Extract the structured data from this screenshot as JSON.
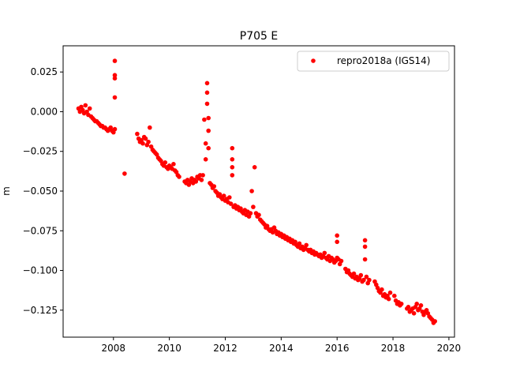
{
  "chart_data": {
    "type": "scatter",
    "title": "P705 E",
    "xlabel": "",
    "ylabel": "m",
    "xlim": [
      2006.2,
      2020.2
    ],
    "ylim": [
      -0.142,
      0.0415
    ],
    "xticks": [
      2008,
      2010,
      2012,
      2014,
      2016,
      2018,
      2020
    ],
    "xtick_labels": [
      "2008",
      "2010",
      "2012",
      "2014",
      "2016",
      "2018",
      "2020"
    ],
    "yticks": [
      0.025,
      0.0,
      -0.025,
      -0.05,
      -0.075,
      -0.1,
      -0.125
    ],
    "ytick_labels": [
      "0.025",
      "0.000",
      "−0.025",
      "−0.050",
      "−0.075",
      "−0.100",
      "−0.125"
    ],
    "grid": false,
    "legend_position": "top-right",
    "series": [
      {
        "name": "repro2018a (IGS14)",
        "color": "#ff0000",
        "marker": "circle",
        "points": [
          [
            2006.75,
            0.002
          ],
          [
            2006.8,
            0.0
          ],
          [
            2006.85,
            0.003
          ],
          [
            2006.9,
            0.001
          ],
          [
            2006.95,
            -0.001
          ],
          [
            2007.0,
            0.004
          ],
          [
            2007.05,
            0.0
          ],
          [
            2007.1,
            -0.002
          ],
          [
            2007.15,
            0.002
          ],
          [
            2007.2,
            -0.003
          ],
          [
            2007.25,
            -0.004
          ],
          [
            2007.3,
            -0.005
          ],
          [
            2007.35,
            -0.006
          ],
          [
            2007.4,
            -0.006
          ],
          [
            2007.45,
            -0.007
          ],
          [
            2007.5,
            -0.008
          ],
          [
            2007.55,
            -0.009
          ],
          [
            2007.6,
            -0.009
          ],
          [
            2007.65,
            -0.01
          ],
          [
            2007.7,
            -0.01
          ],
          [
            2007.75,
            -0.011
          ],
          [
            2007.8,
            -0.012
          ],
          [
            2007.85,
            -0.011
          ],
          [
            2007.9,
            -0.01
          ],
          [
            2007.95,
            -0.012
          ],
          [
            2008.0,
            -0.013
          ],
          [
            2008.05,
            -0.011
          ],
          [
            2008.05,
            0.032
          ],
          [
            2008.05,
            0.023
          ],
          [
            2008.05,
            0.021
          ],
          [
            2008.05,
            0.009
          ],
          [
            2008.4,
            -0.039
          ],
          [
            2008.85,
            -0.014
          ],
          [
            2008.9,
            -0.017
          ],
          [
            2008.95,
            -0.019
          ],
          [
            2009.0,
            -0.018
          ],
          [
            2009.05,
            -0.02
          ],
          [
            2009.1,
            -0.016
          ],
          [
            2009.15,
            -0.017
          ],
          [
            2009.2,
            -0.021
          ],
          [
            2009.25,
            -0.019
          ],
          [
            2009.3,
            -0.01
          ],
          [
            2009.35,
            -0.022
          ],
          [
            2009.4,
            -0.024
          ],
          [
            2009.45,
            -0.025
          ],
          [
            2009.5,
            -0.026
          ],
          [
            2009.55,
            -0.027
          ],
          [
            2009.6,
            -0.029
          ],
          [
            2009.65,
            -0.03
          ],
          [
            2009.7,
            -0.031
          ],
          [
            2009.75,
            -0.033
          ],
          [
            2009.8,
            -0.034
          ],
          [
            2009.85,
            -0.032
          ],
          [
            2009.9,
            -0.035
          ],
          [
            2009.95,
            -0.036
          ],
          [
            2010.0,
            -0.034
          ],
          [
            2010.05,
            -0.035
          ],
          [
            2010.1,
            -0.036
          ],
          [
            2010.15,
            -0.033
          ],
          [
            2010.2,
            -0.037
          ],
          [
            2010.25,
            -0.038
          ],
          [
            2010.3,
            -0.04
          ],
          [
            2010.35,
            -0.041
          ],
          [
            2010.55,
            -0.044
          ],
          [
            2010.6,
            -0.045
          ],
          [
            2010.65,
            -0.043
          ],
          [
            2010.7,
            -0.046
          ],
          [
            2010.75,
            -0.044
          ],
          [
            2010.8,
            -0.042
          ],
          [
            2010.85,
            -0.045
          ],
          [
            2010.9,
            -0.043
          ],
          [
            2010.95,
            -0.044
          ],
          [
            2011.0,
            -0.041
          ],
          [
            2011.05,
            -0.042
          ],
          [
            2011.1,
            -0.04
          ],
          [
            2011.15,
            -0.043
          ],
          [
            2011.2,
            -0.04
          ],
          [
            2011.25,
            -0.005
          ],
          [
            2011.3,
            -0.02
          ],
          [
            2011.3,
            -0.03
          ],
          [
            2011.35,
            0.018
          ],
          [
            2011.35,
            0.012
          ],
          [
            2011.35,
            0.005
          ],
          [
            2011.4,
            -0.004
          ],
          [
            2011.4,
            -0.012
          ],
          [
            2011.4,
            -0.023
          ],
          [
            2011.45,
            -0.045
          ],
          [
            2011.5,
            -0.046
          ],
          [
            2011.55,
            -0.048
          ],
          [
            2011.6,
            -0.047
          ],
          [
            2011.65,
            -0.05
          ],
          [
            2011.7,
            -0.051
          ],
          [
            2011.75,
            -0.053
          ],
          [
            2011.8,
            -0.052
          ],
          [
            2011.85,
            -0.054
          ],
          [
            2011.9,
            -0.055
          ],
          [
            2011.95,
            -0.053
          ],
          [
            2012.0,
            -0.056
          ],
          [
            2012.05,
            -0.055
          ],
          [
            2012.1,
            -0.057
          ],
          [
            2012.15,
            -0.054
          ],
          [
            2012.2,
            -0.058
          ],
          [
            2012.25,
            -0.023
          ],
          [
            2012.25,
            -0.03
          ],
          [
            2012.25,
            -0.035
          ],
          [
            2012.25,
            -0.04
          ],
          [
            2012.3,
            -0.06
          ],
          [
            2012.35,
            -0.059
          ],
          [
            2012.4,
            -0.061
          ],
          [
            2012.45,
            -0.06
          ],
          [
            2012.5,
            -0.062
          ],
          [
            2012.55,
            -0.061
          ],
          [
            2012.6,
            -0.063
          ],
          [
            2012.65,
            -0.064
          ],
          [
            2012.7,
            -0.062
          ],
          [
            2012.75,
            -0.065
          ],
          [
            2012.8,
            -0.063
          ],
          [
            2012.85,
            -0.066
          ],
          [
            2012.9,
            -0.064
          ],
          [
            2012.95,
            -0.05
          ],
          [
            2013.0,
            -0.06
          ],
          [
            2013.05,
            -0.035
          ],
          [
            2013.1,
            -0.064
          ],
          [
            2013.15,
            -0.066
          ],
          [
            2013.2,
            -0.065
          ],
          [
            2013.25,
            -0.068
          ],
          [
            2013.3,
            -0.069
          ],
          [
            2013.35,
            -0.07
          ],
          [
            2013.4,
            -0.071
          ],
          [
            2013.45,
            -0.073
          ],
          [
            2013.5,
            -0.072
          ],
          [
            2013.55,
            -0.074
          ],
          [
            2013.6,
            -0.075
          ],
          [
            2013.65,
            -0.074
          ],
          [
            2013.7,
            -0.076
          ],
          [
            2013.75,
            -0.073
          ],
          [
            2013.8,
            -0.075
          ],
          [
            2013.85,
            -0.077
          ],
          [
            2013.9,
            -0.076
          ],
          [
            2013.95,
            -0.078
          ],
          [
            2014.0,
            -0.077
          ],
          [
            2014.05,
            -0.079
          ],
          [
            2014.1,
            -0.078
          ],
          [
            2014.15,
            -0.08
          ],
          [
            2014.2,
            -0.079
          ],
          [
            2014.25,
            -0.081
          ],
          [
            2014.3,
            -0.08
          ],
          [
            2014.35,
            -0.082
          ],
          [
            2014.4,
            -0.081
          ],
          [
            2014.45,
            -0.083
          ],
          [
            2014.5,
            -0.082
          ],
          [
            2014.55,
            -0.084
          ],
          [
            2014.6,
            -0.085
          ],
          [
            2014.65,
            -0.083
          ],
          [
            2014.7,
            -0.086
          ],
          [
            2014.75,
            -0.085
          ],
          [
            2014.8,
            -0.087
          ],
          [
            2014.85,
            -0.086
          ],
          [
            2014.9,
            -0.084
          ],
          [
            2014.95,
            -0.087
          ],
          [
            2015.0,
            -0.088
          ],
          [
            2015.05,
            -0.087
          ],
          [
            2015.1,
            -0.089
          ],
          [
            2015.15,
            -0.088
          ],
          [
            2015.2,
            -0.09
          ],
          [
            2015.25,
            -0.089
          ],
          [
            2015.3,
            -0.09
          ],
          [
            2015.35,
            -0.091
          ],
          [
            2015.4,
            -0.09
          ],
          [
            2015.45,
            -0.092
          ],
          [
            2015.5,
            -0.091
          ],
          [
            2015.55,
            -0.089
          ],
          [
            2015.6,
            -0.092
          ],
          [
            2015.65,
            -0.093
          ],
          [
            2015.7,
            -0.091
          ],
          [
            2015.75,
            -0.094
          ],
          [
            2015.8,
            -0.092
          ],
          [
            2015.85,
            -0.093
          ],
          [
            2015.9,
            -0.095
          ],
          [
            2015.95,
            -0.094
          ],
          [
            2016.0,
            -0.092
          ],
          [
            2016.0,
            -0.078
          ],
          [
            2016.0,
            -0.082
          ],
          [
            2016.05,
            -0.093
          ],
          [
            2016.1,
            -0.096
          ],
          [
            2016.15,
            -0.094
          ],
          [
            2016.3,
            -0.099
          ],
          [
            2016.35,
            -0.101
          ],
          [
            2016.4,
            -0.1
          ],
          [
            2016.45,
            -0.102
          ],
          [
            2016.5,
            -0.103
          ],
          [
            2016.55,
            -0.104
          ],
          [
            2016.6,
            -0.102
          ],
          [
            2016.65,
            -0.105
          ],
          [
            2016.7,
            -0.104
          ],
          [
            2016.75,
            -0.106
          ],
          [
            2016.8,
            -0.105
          ],
          [
            2016.85,
            -0.103
          ],
          [
            2016.9,
            -0.107
          ],
          [
            2016.95,
            -0.106
          ],
          [
            2017.0,
            -0.081
          ],
          [
            2017.0,
            -0.085
          ],
          [
            2017.0,
            -0.093
          ],
          [
            2017.05,
            -0.104
          ],
          [
            2017.1,
            -0.108
          ],
          [
            2017.15,
            -0.106
          ],
          [
            2017.35,
            -0.107
          ],
          [
            2017.4,
            -0.109
          ],
          [
            2017.45,
            -0.111
          ],
          [
            2017.5,
            -0.113
          ],
          [
            2017.55,
            -0.114
          ],
          [
            2017.6,
            -0.112
          ],
          [
            2017.65,
            -0.116
          ],
          [
            2017.7,
            -0.115
          ],
          [
            2017.75,
            -0.117
          ],
          [
            2017.8,
            -0.116
          ],
          [
            2017.85,
            -0.118
          ],
          [
            2017.9,
            -0.114
          ],
          [
            2018.05,
            -0.116
          ],
          [
            2018.1,
            -0.119
          ],
          [
            2018.15,
            -0.121
          ],
          [
            2018.2,
            -0.12
          ],
          [
            2018.25,
            -0.122
          ],
          [
            2018.3,
            -0.121
          ],
          [
            2018.5,
            -0.124
          ],
          [
            2018.55,
            -0.123
          ],
          [
            2018.6,
            -0.126
          ],
          [
            2018.65,
            -0.125
          ],
          [
            2018.7,
            -0.124
          ],
          [
            2018.75,
            -0.127
          ],
          [
            2018.8,
            -0.123
          ],
          [
            2018.85,
            -0.121
          ],
          [
            2018.9,
            -0.125
          ],
          [
            2018.95,
            -0.124
          ],
          [
            2019.0,
            -0.122
          ],
          [
            2019.05,
            -0.126
          ],
          [
            2019.1,
            -0.128
          ],
          [
            2019.15,
            -0.126
          ],
          [
            2019.2,
            -0.125
          ],
          [
            2019.25,
            -0.127
          ],
          [
            2019.3,
            -0.129
          ],
          [
            2019.35,
            -0.13
          ],
          [
            2019.4,
            -0.131
          ],
          [
            2019.45,
            -0.133
          ],
          [
            2019.5,
            -0.132
          ]
        ]
      }
    ]
  }
}
